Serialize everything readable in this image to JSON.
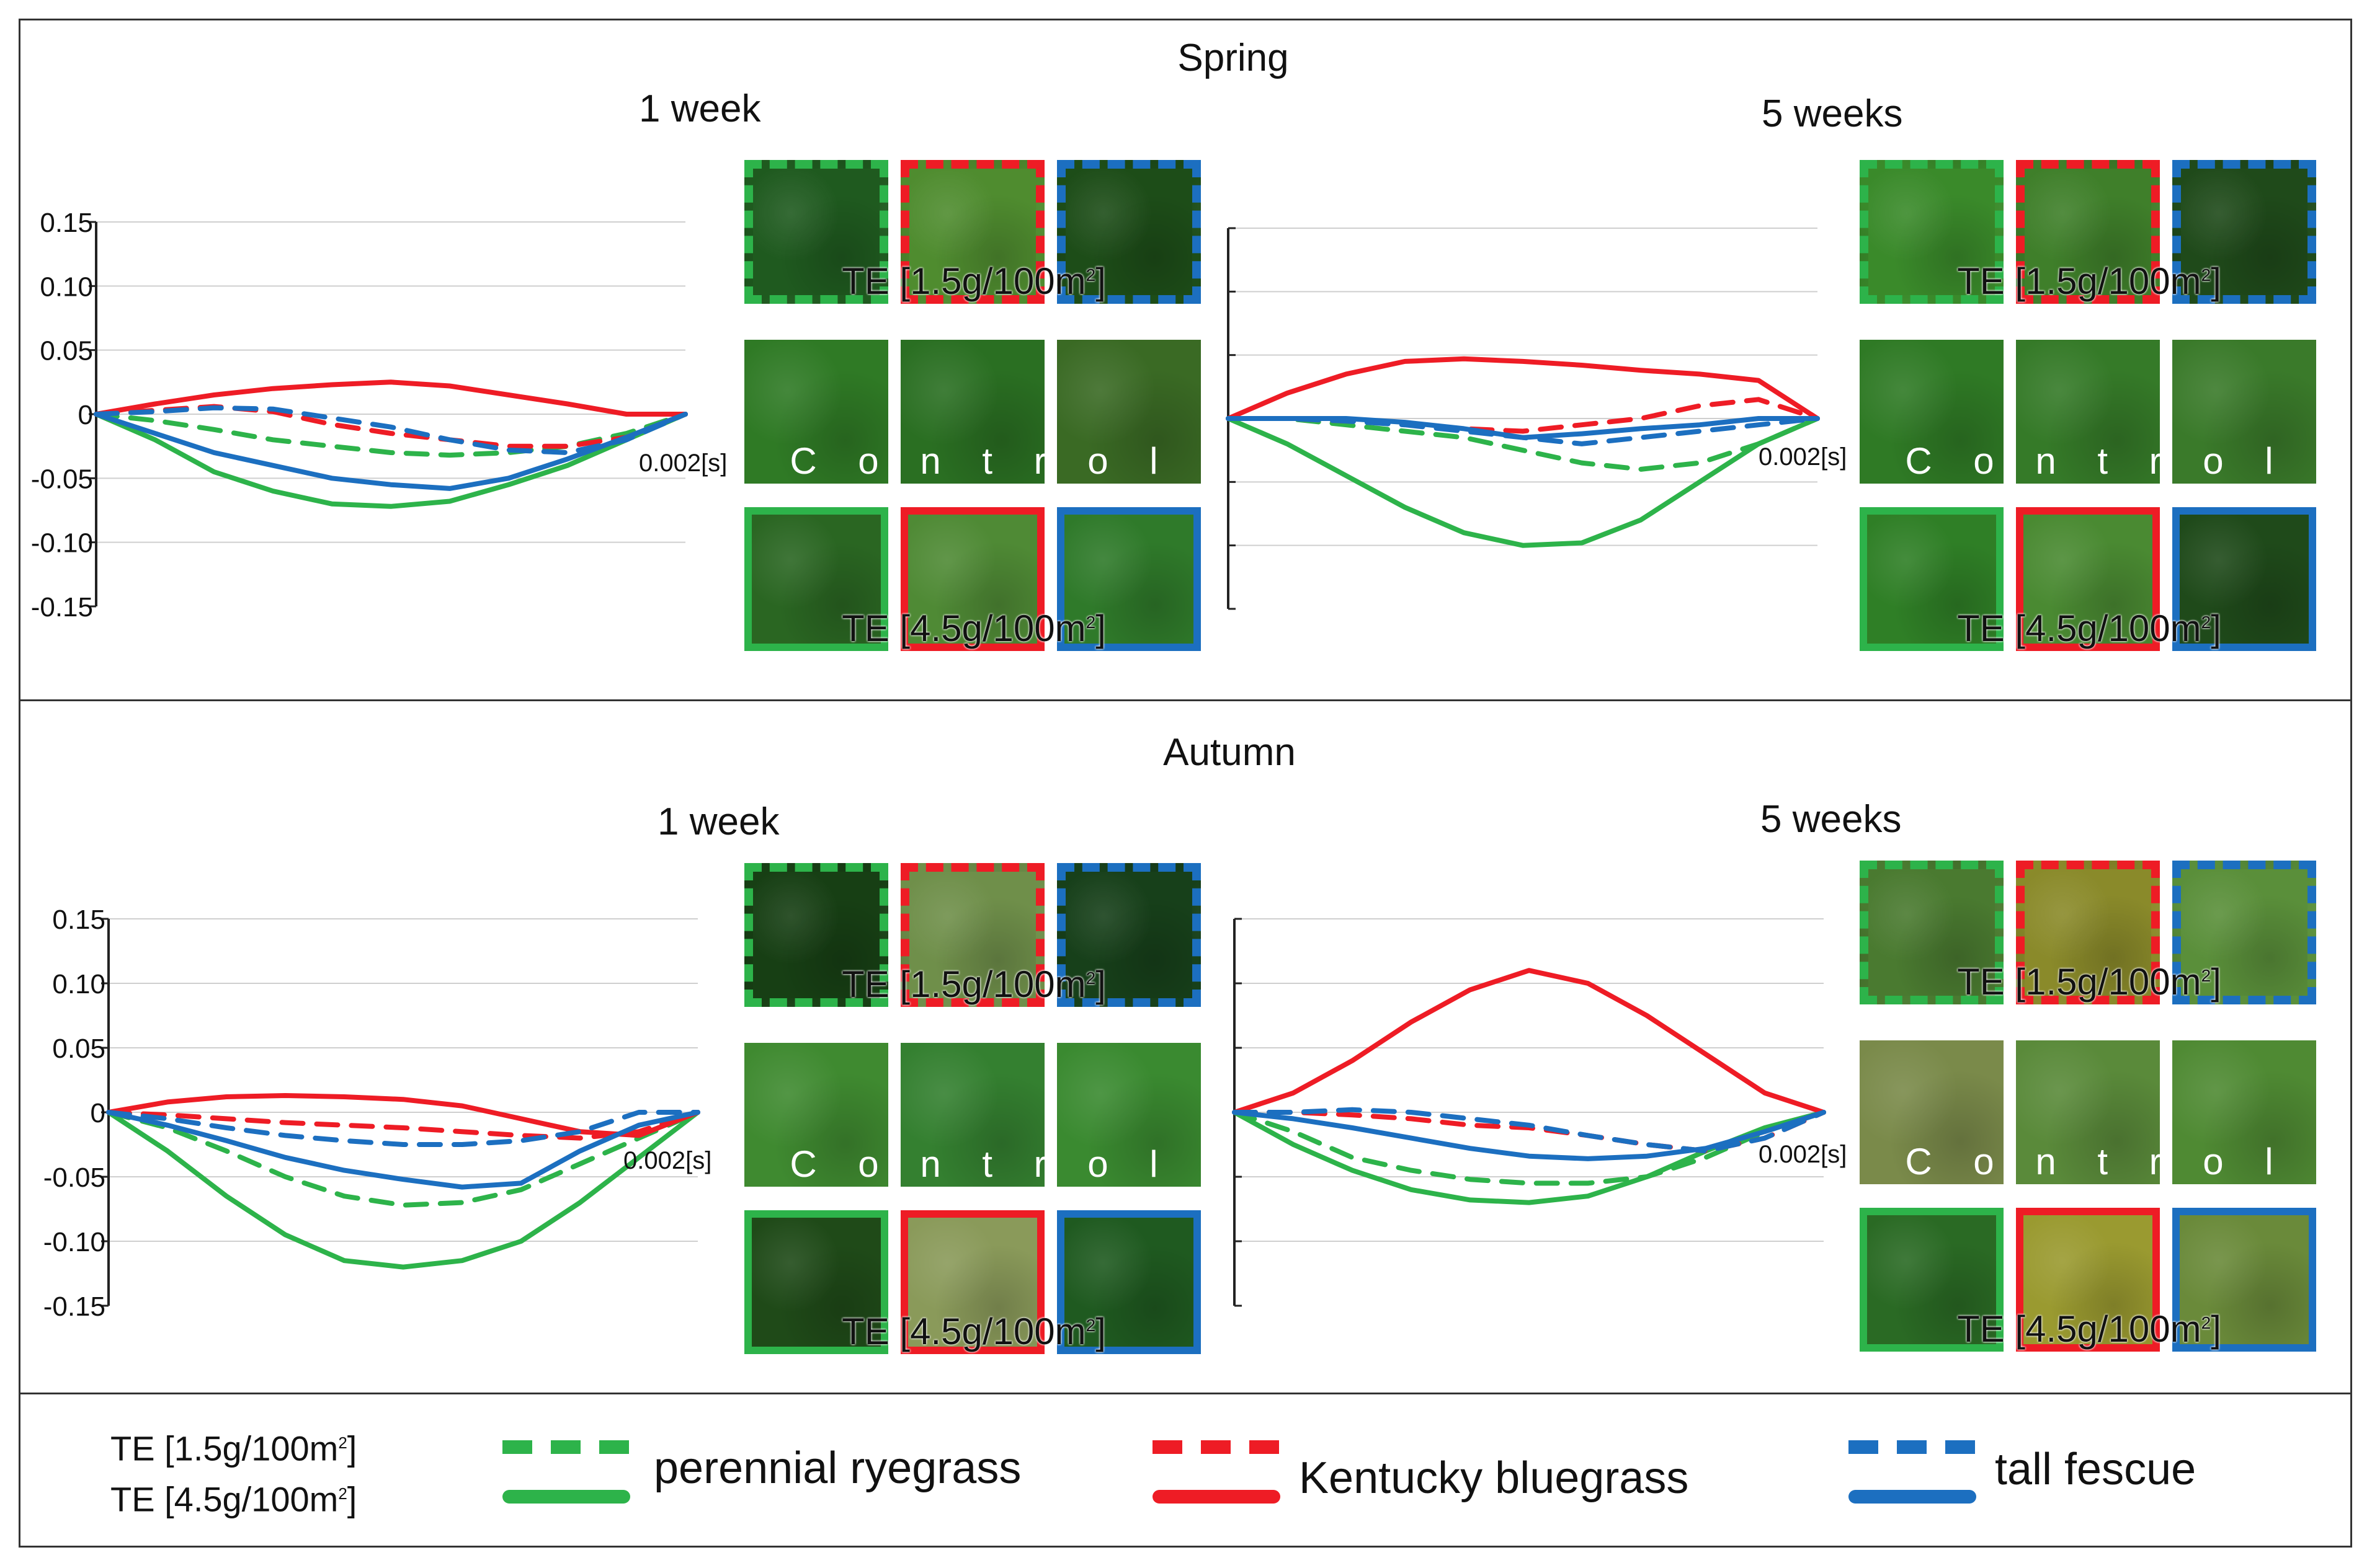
{
  "sections": {
    "spring": {
      "title": "Spring"
    },
    "autumn": {
      "title": "Autumn"
    }
  },
  "panels": [
    {
      "id": "spring-1",
      "title": "1 week"
    },
    {
      "id": "spring-5",
      "title": "5 weeks"
    },
    {
      "id": "autumn-1",
      "title": "1 week"
    },
    {
      "id": "autumn-5",
      "title": "5 weeks"
    }
  ],
  "photos": {
    "te_low_label": "TE [1.5g/100m",
    "te_high_label": "TE [4.5g/100m",
    "superscript": "2",
    "bracket_close": "]",
    "control_letters": [
      "C",
      "o",
      "n",
      "t",
      "r",
      "o",
      "l"
    ],
    "grass_tones": {
      "spring-1": [
        [
          "#1f5a1f",
          "#4f8c2f",
          "#1d4d18"
        ],
        [
          "#2f7a25",
          "#2a6f22",
          "#3a6a24"
        ],
        [
          "#2a6622",
          "#4f8a35",
          "#2f7a2a"
        ]
      ],
      "spring-5": [
        [
          "#3a8a2a",
          "#3f7f2a",
          "#1f4a1a"
        ],
        [
          "#2f7a25",
          "#357a28",
          "#3a7a2a"
        ],
        [
          "#2f7f26",
          "#4a8a32",
          "#1f4a1a"
        ]
      ],
      "autumn-1": [
        [
          "#173f14",
          "#6f8f4a",
          "#17401a"
        ],
        [
          "#3f8a30",
          "#348030",
          "#3a8a30"
        ],
        [
          "#1f4a18",
          "#8a9a5a",
          "#1f5a20"
        ]
      ],
      "autumn-5": [
        [
          "#4a7a30",
          "#8a8a2a",
          "#5a8f3a"
        ],
        [
          "#7a8a4a",
          "#5a8a3a",
          "#4f8a33"
        ],
        [
          "#2a6a24",
          "#9a9a30",
          "#6a8a3a"
        ]
      ]
    }
  },
  "legend": {
    "te_low": "TE [1.5g/100m",
    "te_high": "TE [4.5g/100m",
    "superscript": "2",
    "bracket_close": "]",
    "species": [
      {
        "name": "perennial ryegrass",
        "color": "#2db34a"
      },
      {
        "name": "Kentucky bluegrass",
        "color": "#ee1c25"
      },
      {
        "name": "tall fescue",
        "color": "#1c6fc0"
      }
    ]
  },
  "chart_data": [
    {
      "type": "line",
      "id": "spring-1",
      "title": "Spring 1 week",
      "xlabel": "0.002[s]",
      "ylim": [
        -0.15,
        0.15
      ],
      "yticks": [
        "0.15",
        "0.10",
        "0.05",
        "0",
        "-0.05",
        "-0.10",
        "-0.15"
      ],
      "x": [
        0,
        1,
        2,
        3,
        4,
        5,
        6,
        7,
        8,
        9,
        10
      ],
      "series": [
        {
          "name": "perennial ryegrass TE 1.5",
          "color": "#2db34a",
          "dashed": true,
          "values": [
            0,
            -0.005,
            -0.012,
            -0.02,
            -0.025,
            -0.03,
            -0.032,
            -0.03,
            -0.025,
            -0.015,
            0
          ]
        },
        {
          "name": "perennial ryegrass TE 4.5",
          "color": "#2db34a",
          "dashed": false,
          "values": [
            0,
            -0.02,
            -0.045,
            -0.06,
            -0.07,
            -0.072,
            -0.068,
            -0.055,
            -0.04,
            -0.02,
            0
          ]
        },
        {
          "name": "Kentucky bluegrass TE 1.5",
          "color": "#ee1c25",
          "dashed": true,
          "values": [
            0,
            0.003,
            0.006,
            0.002,
            -0.008,
            -0.015,
            -0.02,
            -0.025,
            -0.025,
            -0.018,
            0
          ]
        },
        {
          "name": "Kentucky bluegrass TE 4.5",
          "color": "#ee1c25",
          "dashed": false,
          "values": [
            0,
            0.008,
            0.015,
            0.02,
            0.023,
            0.025,
            0.022,
            0.015,
            0.008,
            0,
            0
          ]
        },
        {
          "name": "tall fescue TE 1.5",
          "color": "#1c6fc0",
          "dashed": true,
          "values": [
            0,
            0.002,
            0.005,
            0.004,
            -0.003,
            -0.01,
            -0.02,
            -0.028,
            -0.03,
            -0.02,
            0
          ]
        },
        {
          "name": "tall fescue TE 4.5",
          "color": "#1c6fc0",
          "dashed": false,
          "values": [
            0,
            -0.015,
            -0.03,
            -0.04,
            -0.05,
            -0.055,
            -0.058,
            -0.05,
            -0.035,
            -0.018,
            0
          ]
        }
      ]
    },
    {
      "type": "line",
      "id": "spring-5",
      "title": "Spring 5 weeks",
      "xlabel": "0.002[s]",
      "ylim": [
        -0.15,
        0.15
      ],
      "x": [
        0,
        1,
        2,
        3,
        4,
        5,
        6,
        7,
        8,
        9,
        10
      ],
      "series": [
        {
          "name": "perennial ryegrass TE 1.5",
          "color": "#2db34a",
          "dashed": true,
          "values": [
            0,
            0,
            -0.005,
            -0.01,
            -0.015,
            -0.025,
            -0.035,
            -0.04,
            -0.035,
            -0.02,
            0
          ]
        },
        {
          "name": "perennial ryegrass TE 4.5",
          "color": "#2db34a",
          "dashed": false,
          "values": [
            0,
            -0.02,
            -0.045,
            -0.07,
            -0.09,
            -0.1,
            -0.098,
            -0.08,
            -0.05,
            -0.02,
            0
          ]
        },
        {
          "name": "Kentucky bluegrass TE 1.5",
          "color": "#ee1c25",
          "dashed": true,
          "values": [
            0,
            0,
            -0.002,
            -0.004,
            -0.008,
            -0.01,
            -0.005,
            0,
            0.01,
            0.015,
            0
          ]
        },
        {
          "name": "Kentucky bluegrass TE 4.5",
          "color": "#ee1c25",
          "dashed": false,
          "values": [
            0,
            0.02,
            0.035,
            0.045,
            0.047,
            0.045,
            0.042,
            0.038,
            0.035,
            0.03,
            0
          ]
        },
        {
          "name": "tall fescue TE 1.5",
          "color": "#1c6fc0",
          "dashed": true,
          "values": [
            0,
            0,
            -0.002,
            -0.005,
            -0.01,
            -0.015,
            -0.02,
            -0.015,
            -0.01,
            -0.005,
            0
          ]
        },
        {
          "name": "tall fescue TE 4.5",
          "color": "#1c6fc0",
          "dashed": false,
          "values": [
            0,
            0,
            0,
            -0.003,
            -0.008,
            -0.015,
            -0.012,
            -0.008,
            -0.005,
            0,
            0
          ]
        }
      ]
    },
    {
      "type": "line",
      "id": "autumn-1",
      "title": "Autumn 1 week",
      "xlabel": "0.002[s]",
      "ylim": [
        -0.15,
        0.15
      ],
      "yticks": [
        "0.15",
        "0.10",
        "0.05",
        "0",
        "-0.05",
        "-0.10",
        "-0.15"
      ],
      "x": [
        0,
        1,
        2,
        3,
        4,
        5,
        6,
        7,
        8,
        9,
        10
      ],
      "series": [
        {
          "name": "perennial ryegrass TE 1.5",
          "color": "#2db34a",
          "dashed": true,
          "values": [
            0,
            -0.012,
            -0.03,
            -0.05,
            -0.065,
            -0.072,
            -0.07,
            -0.06,
            -0.04,
            -0.02,
            0
          ]
        },
        {
          "name": "perennial ryegrass TE 4.5",
          "color": "#2db34a",
          "dashed": false,
          "values": [
            0,
            -0.03,
            -0.065,
            -0.095,
            -0.115,
            -0.12,
            -0.115,
            -0.1,
            -0.07,
            -0.035,
            0
          ]
        },
        {
          "name": "Kentucky bluegrass TE 1.5",
          "color": "#ee1c25",
          "dashed": true,
          "values": [
            0,
            -0.002,
            -0.005,
            -0.008,
            -0.01,
            -0.012,
            -0.015,
            -0.018,
            -0.02,
            -0.015,
            0
          ]
        },
        {
          "name": "Kentucky bluegrass TE 4.5",
          "color": "#ee1c25",
          "dashed": false,
          "values": [
            0,
            0.008,
            0.012,
            0.013,
            0.012,
            0.01,
            0.005,
            -0.005,
            -0.015,
            -0.018,
            0
          ]
        },
        {
          "name": "tall fescue TE 1.5",
          "color": "#1c6fc0",
          "dashed": true,
          "values": [
            0,
            -0.005,
            -0.012,
            -0.018,
            -0.022,
            -0.025,
            -0.025,
            -0.022,
            -0.015,
            0,
            0
          ]
        },
        {
          "name": "tall fescue TE 4.5",
          "color": "#1c6fc0",
          "dashed": false,
          "values": [
            0,
            -0.01,
            -0.022,
            -0.035,
            -0.045,
            -0.052,
            -0.058,
            -0.055,
            -0.03,
            -0.01,
            0
          ]
        }
      ]
    },
    {
      "type": "line",
      "id": "autumn-5",
      "title": "Autumn 5 weeks",
      "xlabel": "0.002[s]",
      "ylim": [
        -0.15,
        0.15
      ],
      "x": [
        0,
        1,
        2,
        3,
        4,
        5,
        6,
        7,
        8,
        9,
        10
      ],
      "series": [
        {
          "name": "perennial ryegrass TE 1.5",
          "color": "#2db34a",
          "dashed": true,
          "values": [
            0,
            -0.015,
            -0.035,
            -0.045,
            -0.052,
            -0.055,
            -0.055,
            -0.05,
            -0.035,
            -0.015,
            0
          ]
        },
        {
          "name": "perennial ryegrass TE 4.5",
          "color": "#2db34a",
          "dashed": false,
          "values": [
            0,
            -0.025,
            -0.045,
            -0.06,
            -0.068,
            -0.07,
            -0.065,
            -0.05,
            -0.03,
            -0.012,
            0
          ]
        },
        {
          "name": "Kentucky bluegrass TE 1.5",
          "color": "#ee1c25",
          "dashed": true,
          "values": [
            0,
            0,
            -0.002,
            -0.005,
            -0.01,
            -0.012,
            -0.018,
            -0.025,
            -0.03,
            -0.02,
            0
          ]
        },
        {
          "name": "Kentucky bluegrass TE 4.5",
          "color": "#ee1c25",
          "dashed": false,
          "values": [
            0,
            0.015,
            0.04,
            0.07,
            0.095,
            0.11,
            0.1,
            0.075,
            0.045,
            0.015,
            0
          ]
        },
        {
          "name": "tall fescue TE 1.5",
          "color": "#1c6fc0",
          "dashed": true,
          "values": [
            0,
            0,
            0.002,
            0,
            -0.005,
            -0.01,
            -0.018,
            -0.025,
            -0.03,
            -0.02,
            0
          ]
        },
        {
          "name": "tall fescue TE 4.5",
          "color": "#1c6fc0",
          "dashed": false,
          "values": [
            0,
            -0.005,
            -0.012,
            -0.02,
            -0.028,
            -0.034,
            -0.036,
            -0.034,
            -0.028,
            -0.015,
            0
          ]
        }
      ]
    }
  ]
}
